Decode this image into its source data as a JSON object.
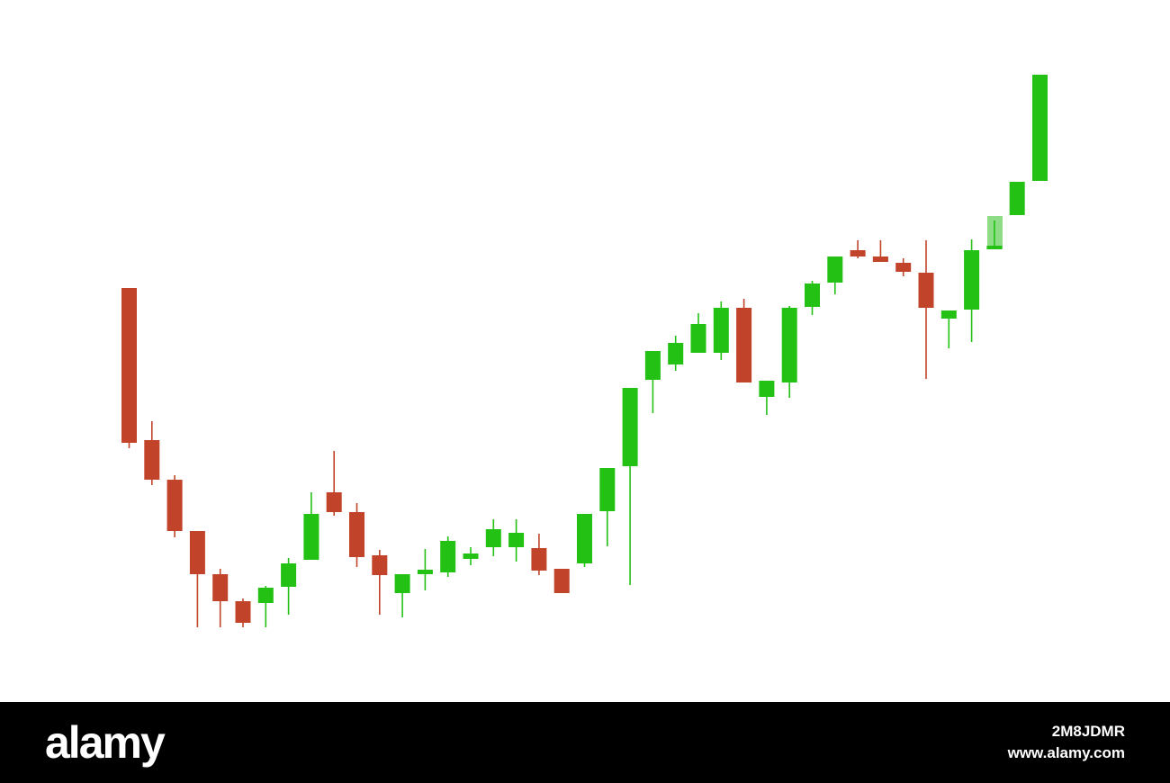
{
  "chart_data": {
    "type": "candlestick",
    "up_color": "#22c114",
    "down_color": "#c1442a",
    "ylim": [
      0,
      780
    ],
    "open": [
      460,
      291,
      247,
      190,
      142,
      112,
      110,
      128,
      158,
      233,
      211,
      163,
      121,
      142,
      144,
      159,
      172,
      172,
      171,
      148,
      154,
      212,
      262,
      358,
      375,
      388,
      388,
      438,
      339,
      355,
      439,
      466,
      502,
      495,
      488,
      477,
      426,
      436,
      503,
      541,
      579
    ],
    "high": [
      460,
      312,
      252,
      190,
      148,
      115,
      129,
      160,
      233,
      279,
      221,
      169,
      142,
      170,
      184,
      172,
      203,
      203,
      187,
      148,
      209,
      260,
      349,
      390,
      407,
      432,
      445,
      448,
      357,
      440,
      468,
      495,
      513,
      513,
      493,
      513,
      435,
      514,
      535,
      578,
      697
    ],
    "low": [
      282,
      241,
      183,
      83,
      83,
      83,
      83,
      97,
      158,
      207,
      150,
      97,
      94,
      124,
      139,
      152,
      162,
      156,
      141,
      121,
      150,
      173,
      130,
      321,
      368,
      388,
      380,
      355,
      319,
      338,
      430,
      453,
      493,
      489,
      473,
      359,
      393,
      400,
      503,
      541,
      579
    ],
    "close": [
      288,
      247,
      190,
      142,
      112,
      88,
      127,
      154,
      209,
      211,
      161,
      141,
      142,
      147,
      179,
      165,
      192,
      188,
      146,
      121,
      209,
      260,
      349,
      390,
      399,
      420,
      438,
      355,
      357,
      438,
      465,
      495,
      495,
      489,
      478,
      438,
      435,
      502,
      507,
      578,
      697
    ]
  },
  "watermark": {
    "brand": "alamy",
    "image_id": "2M8JDMR",
    "url": "www.alamy.com"
  }
}
